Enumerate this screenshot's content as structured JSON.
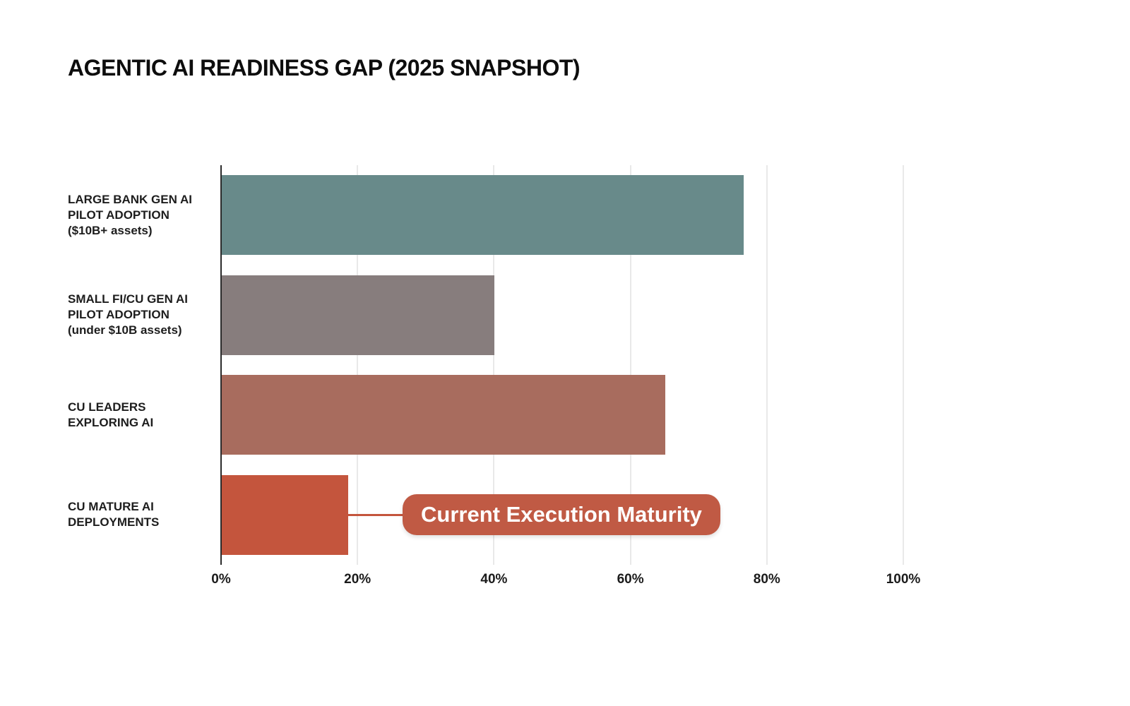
{
  "title": "AGENTIC AI READINESS GAP (2025 SNAPSHOT)",
  "chart_data": {
    "type": "bar",
    "orientation": "horizontal",
    "title": "AGENTIC AI READINESS GAP (2025 SNAPSHOT)",
    "categories": [
      "LARGE BANK GEN AI PILOT ADOPTION ($10B+ assets)",
      "SMALL FI/CU GEN AI PILOT ADOPTION (under $10B assets)",
      "CU LEADERS EXPLORING AI",
      "CU MATURE AI DEPLOYMENTS"
    ],
    "category_lines": [
      [
        "LARGE BANK GEN AI",
        "PILOT ADOPTION",
        "($10B+ assets)"
      ],
      [
        "SMALL FI/CU GEN AI",
        "PILOT ADOPTION",
        "(under $10B assets)"
      ],
      [
        "CU LEADERS",
        "EXPLORING AI"
      ],
      [
        "CU MATURE AI",
        "DEPLOYMENTS"
      ]
    ],
    "values": [
      76.5,
      40,
      65,
      18.5
    ],
    "unit": "%",
    "bar_colors": [
      "#688a8a",
      "#877d7d",
      "#a86c5e",
      "#c4553d"
    ],
    "xlim": [
      0,
      100
    ],
    "x_tick_values": [
      0,
      20,
      40,
      60,
      80,
      100
    ],
    "x_tick_labels": [
      "0%",
      "20%",
      "40%",
      "60%",
      "80%",
      "100%"
    ],
    "grid": "vertical-gridlines-on",
    "legend": "none",
    "annotation": {
      "text": "Current Execution Maturity",
      "target_category": "CU MATURE AI DEPLOYMENTS",
      "target_value": 18.5,
      "bg_color": "#c05a44",
      "text_color": "#ffffff",
      "connector_color": "#c4553d"
    }
  },
  "colors": {
    "background": "#ffffff",
    "gridline": "#e9e9e9",
    "axis_line": "#2b2b2b",
    "text": "#1d1d1d"
  }
}
